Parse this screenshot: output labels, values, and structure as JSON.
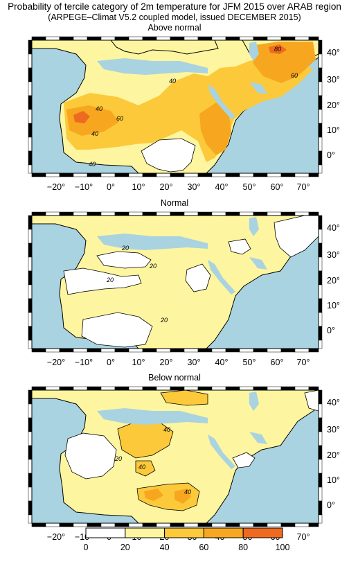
{
  "title_line1": "Probability of tercile category of 2m temperature for JFM 2015 over ARAB region",
  "title_line2": "(ARPEGE–Climat V5.2 coupled model, issued DECEMBER  2015)",
  "colors": {
    "sea": "#a9d3e0",
    "c0_20": "#ffffff",
    "c20_40": "#fdf59f",
    "c40_60": "#fcc93a",
    "c60_80": "#f7a71f",
    "c80_100": "#ee6a20"
  },
  "x_tick_labels": [
    "−20°",
    "−10°",
    "0°",
    "10°",
    "20°",
    "30°",
    "40°",
    "50°",
    "60°",
    "70°"
  ],
  "y_tick_labels": [
    "40°",
    "30°",
    "20°",
    "10°",
    "0°"
  ],
  "panels": [
    {
      "title": "Above normal",
      "contour_labels": [
        "80",
        "60",
        "40",
        "40",
        "40",
        "60",
        "40"
      ]
    },
    {
      "title": "Normal",
      "contour_labels": [
        "20",
        "20",
        "20",
        "20"
      ]
    },
    {
      "title": "Below normal",
      "contour_labels": [
        "40",
        "20",
        "40",
        "40"
      ]
    }
  ],
  "legend": {
    "ticks": [
      "0",
      "20",
      "40",
      "60",
      "80",
      "100"
    ]
  }
}
